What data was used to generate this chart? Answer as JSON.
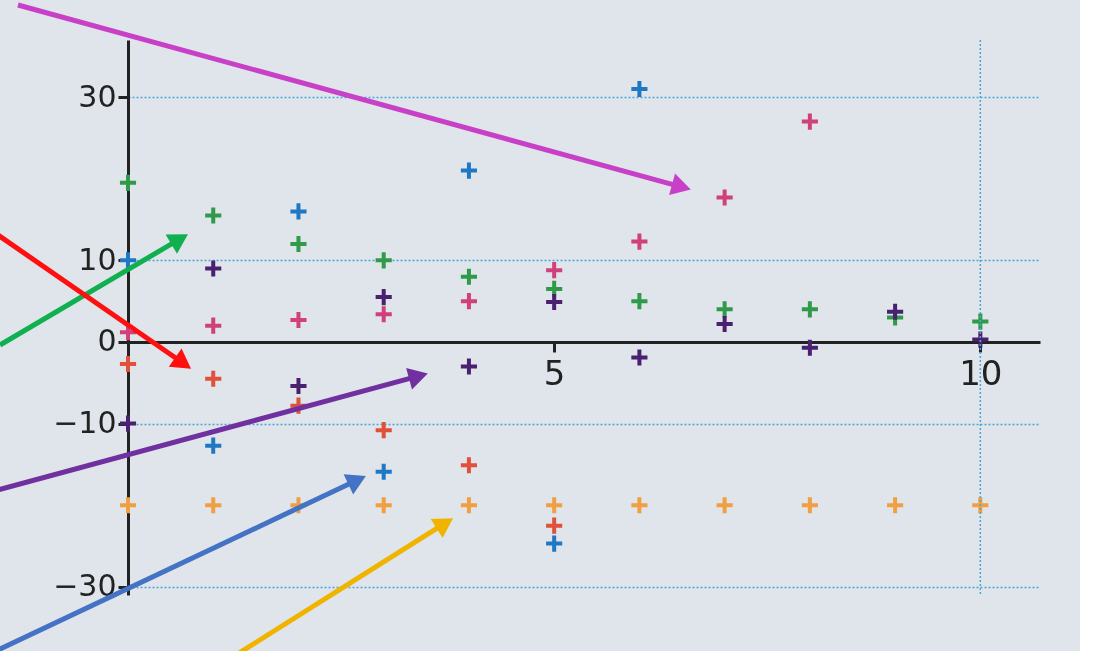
{
  "chart_data": {
    "type": "scatter",
    "x": [
      0,
      1,
      2,
      3,
      4,
      5,
      6,
      7,
      8,
      9,
      10
    ],
    "series": [
      {
        "color": "#1f78c4",
        "x": [
          0,
          1,
          2,
          3,
          4,
          5,
          6
        ],
        "values": [
          10,
          -12.7,
          16,
          -15.9,
          21,
          -24.7,
          31
        ]
      },
      {
        "color": "#2e9a4a",
        "values": [
          19.5,
          15.5,
          12,
          10,
          8,
          6.5,
          5,
          4,
          4,
          3,
          2.5
        ]
      },
      {
        "color": "#d0407a",
        "x": [
          0,
          1,
          2,
          3,
          4,
          5,
          6,
          7,
          8
        ],
        "values": [
          1.2,
          2,
          2.7,
          3.4,
          5,
          8.8,
          12.3,
          17.7,
          27
        ]
      },
      {
        "color": "#4a2070",
        "values": [
          -10,
          9,
          -5.4,
          5.5,
          -3,
          4.9,
          -1.9,
          2.2,
          -0.7,
          3.7,
          0.3
        ]
      },
      {
        "color": "#e0503a",
        "x": [
          0,
          1,
          2,
          3,
          4,
          5
        ],
        "values": [
          -2.7,
          -4.5,
          -7.8,
          -10.8,
          -15.1,
          -22.5
        ]
      },
      {
        "color": "#f0a040",
        "values": [
          -20,
          -20,
          -20,
          -20,
          -20,
          -20,
          -20,
          -20,
          -20,
          -20,
          -20
        ]
      }
    ],
    "xlim": [
      0,
      10.7
    ],
    "xticks": [
      5,
      10
    ],
    "ylim": [
      -31,
      37
    ],
    "yticks": [
      30,
      10,
      0,
      -10,
      -30
    ],
    "grid": "y",
    "marker": "cross",
    "legend": false,
    "ref_lines": [
      {
        "axis": "x",
        "value": 10,
        "color": "#4aa8d8",
        "line_style": "dotted"
      }
    ]
  }
}
